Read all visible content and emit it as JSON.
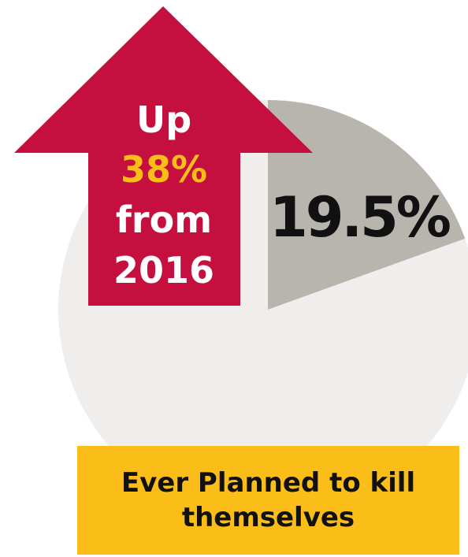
{
  "chart_data": {
    "type": "pie",
    "slices": [
      {
        "value": 19.5,
        "label": "19.5%",
        "color": "#b7b5ae"
      },
      {
        "value": 80.5,
        "label": "",
        "color": "#efeeec"
      }
    ],
    "highlight_color": "#b7b5ae",
    "remainder_color": "#efeeec"
  },
  "arrow": {
    "color": "#c5103f",
    "line1": "Up",
    "line2": "38%",
    "line3": "from",
    "line4": "2016",
    "accent_color": "#fbbd18"
  },
  "caption": {
    "text": "Ever Planned to kill themselves",
    "background": "#fbbd18"
  }
}
